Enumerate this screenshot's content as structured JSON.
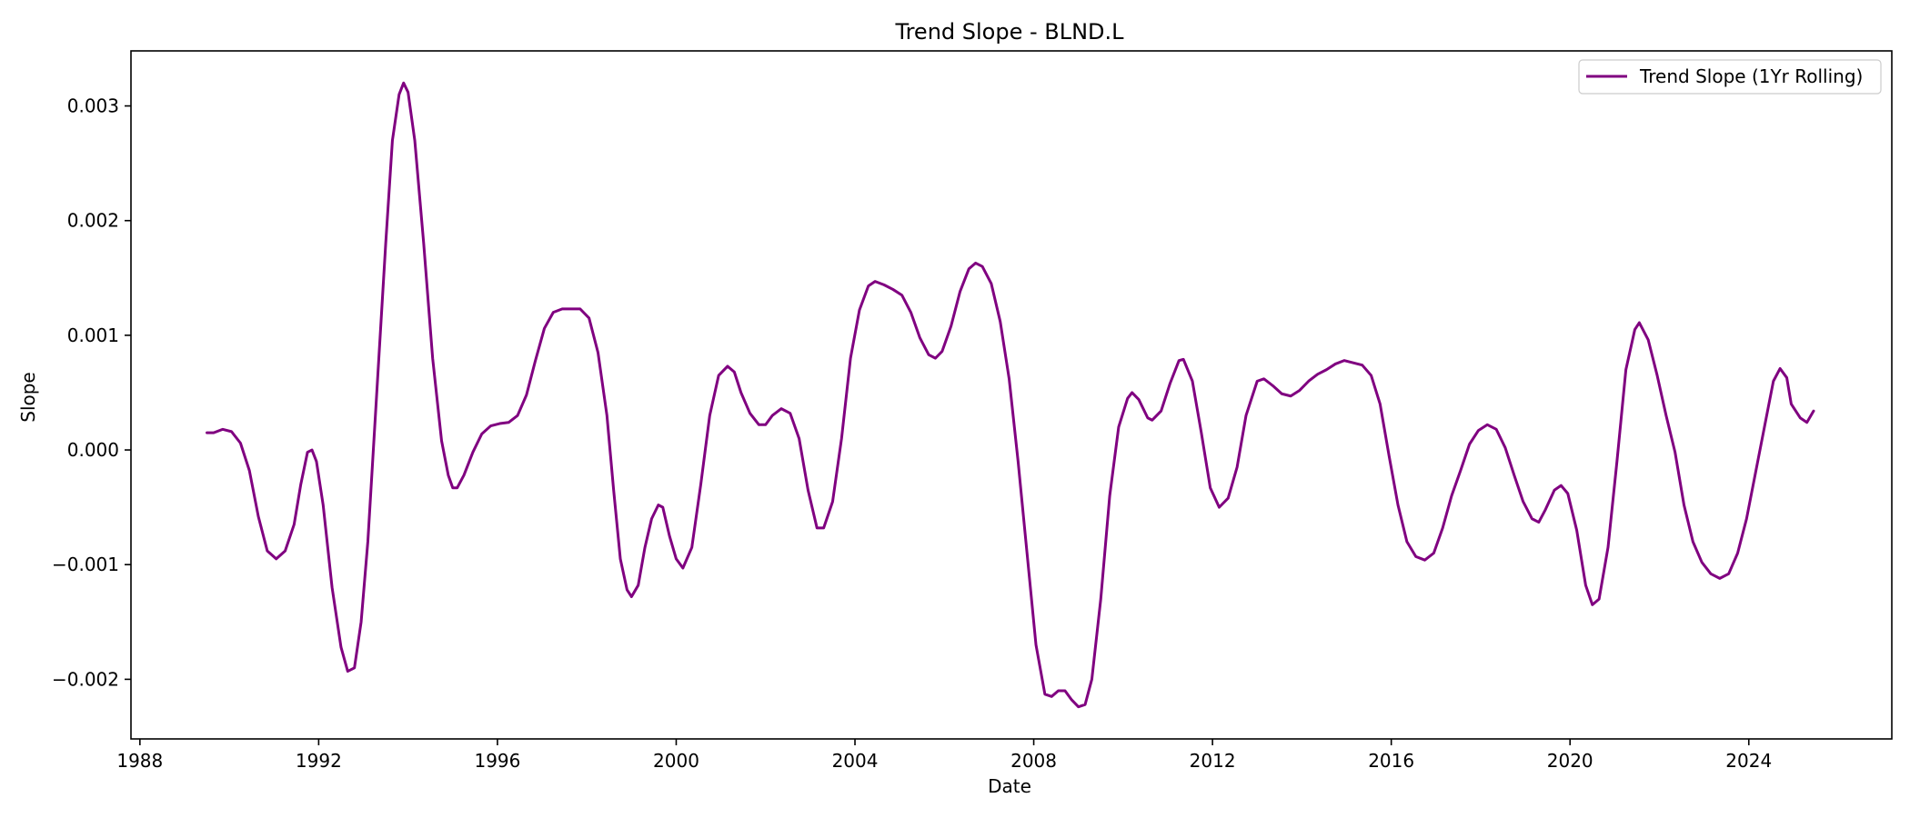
{
  "chart_data": {
    "type": "line",
    "title": "Trend Slope - BLND.L",
    "xlabel": "Date",
    "ylabel": "Slope",
    "xlim": [
      1987.8,
      2027.2
    ],
    "ylim": [
      -0.00252,
      0.00348
    ],
    "x_ticks": [
      1988,
      1992,
      1996,
      2000,
      2004,
      2008,
      2012,
      2016,
      2020,
      2024
    ],
    "x_tick_labels": [
      "1988",
      "1992",
      "1996",
      "2000",
      "2004",
      "2008",
      "2012",
      "2016",
      "2020",
      "2024"
    ],
    "y_ticks": [
      -0.002,
      -0.001,
      0.0,
      0.001,
      0.002,
      0.003
    ],
    "y_tick_labels": [
      "−0.002",
      "−0.001",
      "0.000",
      "0.001",
      "0.002",
      "0.003"
    ],
    "grid": false,
    "legend_position": "top-right",
    "series": [
      {
        "name": "Trend Slope (1Yr Rolling)",
        "color": "#800080",
        "points": [
          [
            1989.5,
            0.00015
          ],
          [
            1989.65,
            0.00015
          ],
          [
            1989.85,
            0.00018
          ],
          [
            1990.05,
            0.00016
          ],
          [
            1990.25,
            6e-05
          ],
          [
            1990.45,
            -0.00018
          ],
          [
            1990.65,
            -0.00058
          ],
          [
            1990.85,
            -0.00088
          ],
          [
            1991.05,
            -0.00095
          ],
          [
            1991.25,
            -0.00088
          ],
          [
            1991.45,
            -0.00065
          ],
          [
            1991.6,
            -0.0003
          ],
          [
            1991.75,
            -2e-05
          ],
          [
            1991.85,
            0.0
          ],
          [
            1991.95,
            -0.0001
          ],
          [
            1992.1,
            -0.00048
          ],
          [
            1992.3,
            -0.0012
          ],
          [
            1992.5,
            -0.00172
          ],
          [
            1992.65,
            -0.00193
          ],
          [
            1992.8,
            -0.0019
          ],
          [
            1992.95,
            -0.0015
          ],
          [
            1993.1,
            -0.0008
          ],
          [
            1993.3,
            0.0005
          ],
          [
            1993.5,
            0.0018
          ],
          [
            1993.65,
            0.0027
          ],
          [
            1993.8,
            0.0031
          ],
          [
            1993.9,
            0.0032
          ],
          [
            1994.0,
            0.00312
          ],
          [
            1994.15,
            0.0027
          ],
          [
            1994.35,
            0.0018
          ],
          [
            1994.55,
            0.0008
          ],
          [
            1994.75,
            8e-05
          ],
          [
            1994.9,
            -0.00022
          ],
          [
            1995.0,
            -0.00033
          ],
          [
            1995.1,
            -0.00033
          ],
          [
            1995.25,
            -0.00022
          ],
          [
            1995.45,
            -2e-05
          ],
          [
            1995.65,
            0.00014
          ],
          [
            1995.85,
            0.00021
          ],
          [
            1996.05,
            0.00023
          ],
          [
            1996.25,
            0.00024
          ],
          [
            1996.45,
            0.0003
          ],
          [
            1996.65,
            0.00048
          ],
          [
            1996.85,
            0.00078
          ],
          [
            1997.05,
            0.00106
          ],
          [
            1997.25,
            0.0012
          ],
          [
            1997.45,
            0.00123
          ],
          [
            1997.65,
            0.00123
          ],
          [
            1997.85,
            0.00123
          ],
          [
            1998.05,
            0.00115
          ],
          [
            1998.25,
            0.00085
          ],
          [
            1998.45,
            0.0003
          ],
          [
            1998.6,
            -0.00035
          ],
          [
            1998.75,
            -0.00095
          ],
          [
            1998.9,
            -0.00122
          ],
          [
            1999.0,
            -0.00128
          ],
          [
            1999.15,
            -0.00118
          ],
          [
            1999.3,
            -0.00085
          ],
          [
            1999.45,
            -0.0006
          ],
          [
            1999.6,
            -0.00048
          ],
          [
            1999.7,
            -0.0005
          ],
          [
            1999.85,
            -0.00075
          ],
          [
            2000.0,
            -0.00095
          ],
          [
            2000.15,
            -0.00103
          ],
          [
            2000.35,
            -0.00085
          ],
          [
            2000.55,
            -0.0003
          ],
          [
            2000.75,
            0.0003
          ],
          [
            2000.95,
            0.00065
          ],
          [
            2001.15,
            0.00073
          ],
          [
            2001.3,
            0.00068
          ],
          [
            2001.45,
            0.0005
          ],
          [
            2001.65,
            0.00032
          ],
          [
            2001.85,
            0.00022
          ],
          [
            2002.0,
            0.00022
          ],
          [
            2002.15,
            0.0003
          ],
          [
            2002.35,
            0.00036
          ],
          [
            2002.55,
            0.00032
          ],
          [
            2002.75,
            0.0001
          ],
          [
            2002.95,
            -0.00035
          ],
          [
            2003.15,
            -0.00068
          ],
          [
            2003.3,
            -0.00068
          ],
          [
            2003.5,
            -0.00045
          ],
          [
            2003.7,
            0.0001
          ],
          [
            2003.9,
            0.0008
          ],
          [
            2004.1,
            0.00122
          ],
          [
            2004.3,
            0.00143
          ],
          [
            2004.45,
            0.00147
          ],
          [
            2004.65,
            0.00144
          ],
          [
            2004.85,
            0.0014
          ],
          [
            2005.05,
            0.00135
          ],
          [
            2005.25,
            0.0012
          ],
          [
            2005.45,
            0.00098
          ],
          [
            2005.65,
            0.00083
          ],
          [
            2005.8,
            0.0008
          ],
          [
            2005.95,
            0.00086
          ],
          [
            2006.15,
            0.00108
          ],
          [
            2006.35,
            0.00138
          ],
          [
            2006.55,
            0.00158
          ],
          [
            2006.7,
            0.00163
          ],
          [
            2006.85,
            0.0016
          ],
          [
            2007.05,
            0.00145
          ],
          [
            2007.25,
            0.00112
          ],
          [
            2007.45,
            0.00062
          ],
          [
            2007.65,
            -0.0001
          ],
          [
            2007.85,
            -0.0009
          ],
          [
            2008.05,
            -0.0017
          ],
          [
            2008.25,
            -0.00213
          ],
          [
            2008.4,
            -0.00215
          ],
          [
            2008.55,
            -0.0021
          ],
          [
            2008.7,
            -0.0021
          ],
          [
            2008.85,
            -0.00218
          ],
          [
            2009.0,
            -0.00224
          ],
          [
            2009.15,
            -0.00222
          ],
          [
            2009.3,
            -0.002
          ],
          [
            2009.5,
            -0.0013
          ],
          [
            2009.7,
            -0.0004
          ],
          [
            2009.9,
            0.0002
          ],
          [
            2010.1,
            0.00045
          ],
          [
            2010.2,
            0.0005
          ],
          [
            2010.35,
            0.00044
          ],
          [
            2010.55,
            0.00028
          ],
          [
            2010.65,
            0.00026
          ],
          [
            2010.85,
            0.00034
          ],
          [
            2011.05,
            0.00058
          ],
          [
            2011.25,
            0.00078
          ],
          [
            2011.35,
            0.00079
          ],
          [
            2011.55,
            0.0006
          ],
          [
            2011.75,
            0.00015
          ],
          [
            2011.95,
            -0.00033
          ],
          [
            2012.15,
            -0.0005
          ],
          [
            2012.35,
            -0.00042
          ],
          [
            2012.55,
            -0.00015
          ],
          [
            2012.75,
            0.0003
          ],
          [
            2013.0,
            0.0006
          ],
          [
            2013.15,
            0.00062
          ],
          [
            2013.35,
            0.00056
          ],
          [
            2013.55,
            0.00049
          ],
          [
            2013.75,
            0.00047
          ],
          [
            2013.95,
            0.00052
          ],
          [
            2014.15,
            0.0006
          ],
          [
            2014.35,
            0.00066
          ],
          [
            2014.55,
            0.0007
          ],
          [
            2014.75,
            0.00075
          ],
          [
            2014.95,
            0.00078
          ],
          [
            2015.15,
            0.00076
          ],
          [
            2015.35,
            0.00074
          ],
          [
            2015.55,
            0.00065
          ],
          [
            2015.75,
            0.0004
          ],
          [
            2015.95,
            -5e-05
          ],
          [
            2016.15,
            -0.00048
          ],
          [
            2016.35,
            -0.0008
          ],
          [
            2016.55,
            -0.00093
          ],
          [
            2016.75,
            -0.00096
          ],
          [
            2016.95,
            -0.0009
          ],
          [
            2017.15,
            -0.00068
          ],
          [
            2017.35,
            -0.0004
          ],
          [
            2017.55,
            -0.00018
          ],
          [
            2017.75,
            5e-05
          ],
          [
            2017.95,
            0.00017
          ],
          [
            2018.15,
            0.00022
          ],
          [
            2018.35,
            0.00018
          ],
          [
            2018.55,
            2e-05
          ],
          [
            2018.75,
            -0.00022
          ],
          [
            2018.95,
            -0.00045
          ],
          [
            2019.15,
            -0.0006
          ],
          [
            2019.3,
            -0.00063
          ],
          [
            2019.45,
            -0.00052
          ],
          [
            2019.65,
            -0.00035
          ],
          [
            2019.8,
            -0.00031
          ],
          [
            2019.95,
            -0.00038
          ],
          [
            2020.15,
            -0.0007
          ],
          [
            2020.35,
            -0.00118
          ],
          [
            2020.5,
            -0.00135
          ],
          [
            2020.65,
            -0.0013
          ],
          [
            2020.85,
            -0.00085
          ],
          [
            2021.05,
            -0.0001
          ],
          [
            2021.25,
            0.0007
          ],
          [
            2021.45,
            0.00105
          ],
          [
            2021.55,
            0.00111
          ],
          [
            2021.75,
            0.00096
          ],
          [
            2021.95,
            0.00065
          ],
          [
            2022.15,
            0.0003
          ],
          [
            2022.35,
            -2e-05
          ],
          [
            2022.55,
            -0.00048
          ],
          [
            2022.75,
            -0.0008
          ],
          [
            2022.95,
            -0.00098
          ],
          [
            2023.15,
            -0.00108
          ],
          [
            2023.35,
            -0.00112
          ],
          [
            2023.55,
            -0.00108
          ],
          [
            2023.75,
            -0.0009
          ],
          [
            2023.95,
            -0.0006
          ],
          [
            2024.15,
            -0.0002
          ],
          [
            2024.35,
            0.0002
          ],
          [
            2024.55,
            0.0006
          ],
          [
            2024.7,
            0.00071
          ],
          [
            2024.85,
            0.00063
          ],
          [
            2024.95,
            0.0004
          ],
          [
            2025.15,
            0.00028
          ],
          [
            2025.3,
            0.00024
          ],
          [
            2025.45,
            0.00034
          ]
        ]
      }
    ]
  }
}
